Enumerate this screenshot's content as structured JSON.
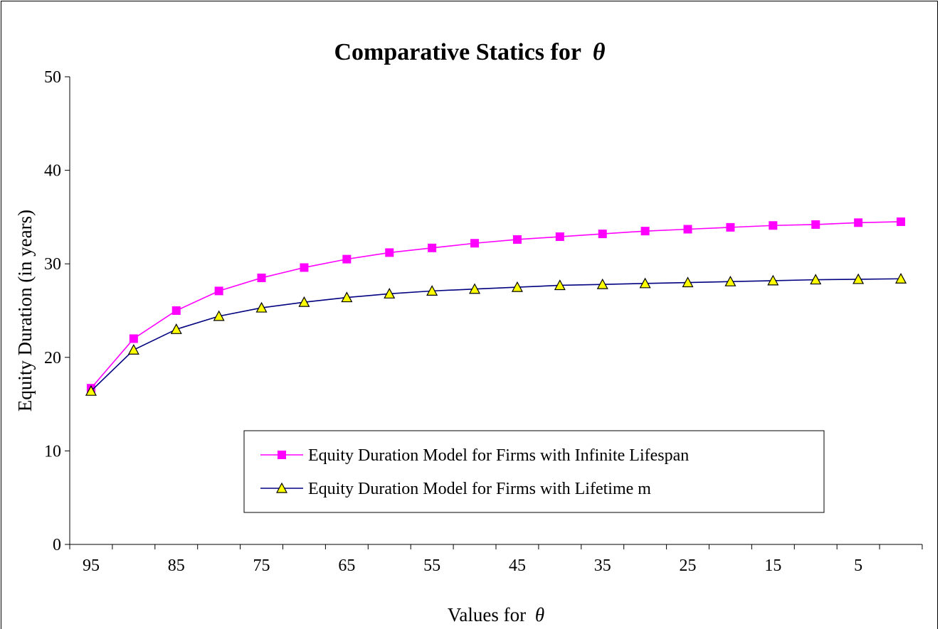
{
  "chart_data": {
    "type": "line",
    "title": "Comparative Statics for",
    "title_symbol": "θ",
    "xlabel": "Values for",
    "xlabel_symbol": "θ",
    "ylabel": "Equity Duration (in years)",
    "ylim": [
      0,
      50
    ],
    "yticks": [
      0,
      10,
      20,
      30,
      40,
      50
    ],
    "x": [
      95,
      90,
      85,
      80,
      75,
      70,
      65,
      60,
      55,
      50,
      45,
      40,
      35,
      30,
      25,
      20,
      15,
      10,
      5,
      0
    ],
    "xtick_labels": [
      "95",
      "85",
      "75",
      "65",
      "55",
      "45",
      "35",
      "25",
      "15",
      "5"
    ],
    "grid": false,
    "legend_position": "bottom-right",
    "series": [
      {
        "name": "Equity Duration Model for Firms with Infinite Lifespan",
        "color": "#ff00ff",
        "marker": "square",
        "marker_color": "#ff00ff",
        "values": [
          16.7,
          22.0,
          25.0,
          27.1,
          28.5,
          29.6,
          30.5,
          31.2,
          31.7,
          32.2,
          32.6,
          32.9,
          33.2,
          33.5,
          33.7,
          33.9,
          34.1,
          34.2,
          34.4,
          34.5
        ]
      },
      {
        "name": "Equity Duration Model for Firms with Lifetime m",
        "color": "#000080",
        "marker": "triangle",
        "marker_color": "#ffff00",
        "values": [
          16.4,
          20.8,
          23.0,
          24.4,
          25.3,
          25.9,
          26.4,
          26.8,
          27.1,
          27.3,
          27.5,
          27.7,
          27.8,
          27.9,
          28.0,
          28.1,
          28.2,
          28.3,
          28.35,
          28.4
        ]
      }
    ]
  }
}
